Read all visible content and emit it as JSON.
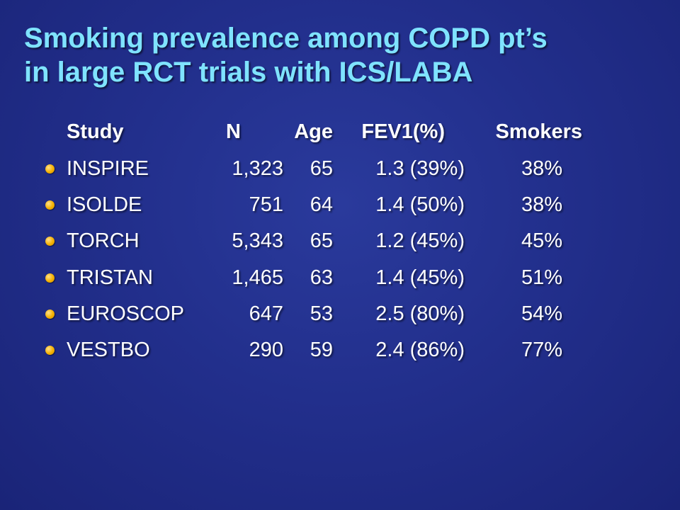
{
  "title": {
    "line1": "Smoking prevalence among COPD pt’s",
    "line2": "in large RCT trials with ICS/LABA"
  },
  "table": {
    "headers": {
      "study": "Study",
      "n": "N",
      "age": "Age",
      "fev1": "FEV1(%)",
      "smokers": "Smokers"
    },
    "rows": [
      {
        "study": "INSPIRE",
        "n": "1,323",
        "age": "65",
        "fev1": "1.3 (39%)",
        "smokers": "38%"
      },
      {
        "study": "ISOLDE",
        "n": "751",
        "age": "64",
        "fev1": "1.4 (50%)",
        "smokers": "38%"
      },
      {
        "study": "TORCH",
        "n": "5,343",
        "age": "65",
        "fev1": "1.2 (45%)",
        "smokers": "45%"
      },
      {
        "study": "TRISTAN",
        "n": "1,465",
        "age": "63",
        "fev1": "1.4 (45%)",
        "smokers": "51%"
      },
      {
        "study": "EUROSCOP",
        "n": "647",
        "age": "53",
        "fev1": "2.5 (80%)",
        "smokers": "54%"
      },
      {
        "study": "VESTBO",
        "n": "290",
        "age": "59",
        "fev1": "2.4 (86%)",
        "smokers": "77%"
      }
    ]
  },
  "colors": {
    "background": "#222f8c",
    "title": "#7fe3ff",
    "text": "#ffffff",
    "bullet": "#f4b000"
  }
}
